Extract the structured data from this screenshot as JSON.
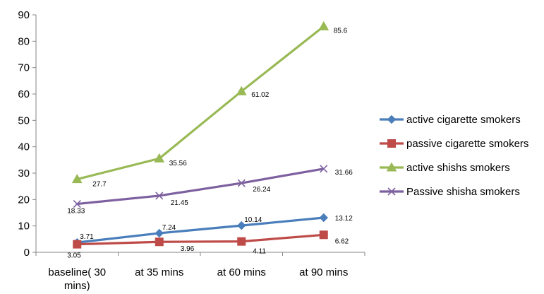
{
  "chart_data": {
    "type": "line",
    "categories": [
      "baseline( 30 mins)",
      "at 35 mins",
      "at 60 mins",
      "at 90 mins"
    ],
    "ylim": [
      0,
      90
    ],
    "yticks": [
      0,
      10,
      20,
      30,
      40,
      50,
      60,
      70,
      80,
      90
    ],
    "grid": false,
    "legend_position": "right",
    "series": [
      {
        "name": "active cigarette smokers",
        "values": [
          3.71,
          7.24,
          10.14,
          13.12
        ],
        "labels": [
          "3.71",
          "7.24",
          "10.14",
          "13.12"
        ],
        "color": "#4a7ebb",
        "marker": "diamond"
      },
      {
        "name": "passive cigarette smokers",
        "values": [
          3.05,
          3.96,
          4.11,
          6.62
        ],
        "labels": [
          "3.05",
          "3.96",
          "4.11",
          "6.62"
        ],
        "color": "#be4b48",
        "marker": "square"
      },
      {
        "name": "active shishs smokers",
        "values": [
          27.7,
          35.56,
          61.02,
          85.6
        ],
        "labels": [
          "27.7",
          "35.56",
          "61.02",
          "85.6"
        ],
        "color": "#98b954",
        "marker": "triangle"
      },
      {
        "name": "Passive shisha smokers",
        "values": [
          18.33,
          21.45,
          26.24,
          31.66
        ],
        "labels": [
          "18.33",
          "21.45",
          "26.24",
          "31.66"
        ],
        "color": "#7d60a0",
        "marker": "x"
      }
    ]
  }
}
